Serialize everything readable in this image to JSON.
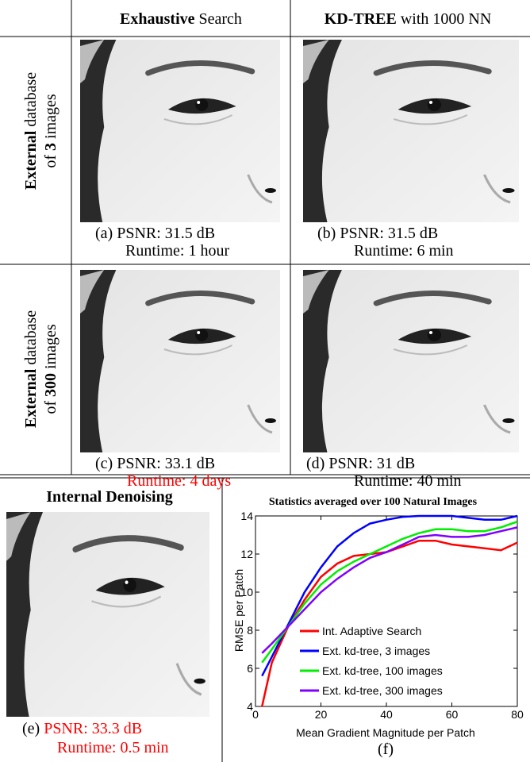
{
  "header": {
    "col1": {
      "bold": "Exhaustive",
      "rest": "Search"
    },
    "col2": {
      "bold": "KD-TREE",
      "rest": "with 1000 NN"
    }
  },
  "rows": [
    {
      "bold": "External",
      "rest": "database",
      "pre": "of",
      "number": "3",
      "post": "images"
    },
    {
      "bold": "External",
      "rest": "database",
      "pre": "of",
      "number": "300",
      "post": "images"
    }
  ],
  "panels": [
    {
      "label": "(a)",
      "psnr": "PSNR: 31.5 dB",
      "runtime": "Runtime: 1 hour"
    },
    {
      "label": "(b)",
      "psnr": "PSNR: 31.5 dB",
      "runtime": "Runtime: 6 min"
    },
    {
      "label": "(c)",
      "psnr": "PSNR: 33.1 dB",
      "runtime": "Runtime: 4 days"
    },
    {
      "label": "(d)",
      "psnr": "PSNR: 31 dB",
      "runtime": "Runtime: 40 min"
    }
  ],
  "internal": {
    "title": "Internal Denoising",
    "label": "(e)",
    "psnr": "PSNR: 33.3 dB",
    "runtime": "Runtime: 0.5 min"
  },
  "chart_data": {
    "type": "line",
    "title": "Statistics averaged over 100 Natural Images",
    "xlabel": "Mean Gradient Magnitude per Patch",
    "ylabel": "RMSE per Patch",
    "caption": "(f)",
    "x": [
      2,
      5,
      10,
      15,
      20,
      25,
      30,
      35,
      40,
      45,
      50,
      55,
      60,
      65,
      70,
      75,
      80
    ],
    "series": [
      {
        "name": "Int. Adaptive Search",
        "color": "#ff0000",
        "values": [
          4,
          6.3,
          8.2,
          9.6,
          10.8,
          11.5,
          11.9,
          12.0,
          12.1,
          12.4,
          12.7,
          12.7,
          12.5,
          12.4,
          12.3,
          12.2,
          12.6
        ]
      },
      {
        "name": "Ext. kd-tree, 3 images",
        "color": "#0000ff",
        "values": [
          5.6,
          6.6,
          8.3,
          10.0,
          11.3,
          12.4,
          13.1,
          13.6,
          13.8,
          13.95,
          14.0,
          14.0,
          14.0,
          13.9,
          13.8,
          13.8,
          14.0
        ]
      },
      {
        "name": "Ext. kd-tree, 100 images",
        "color": "#00ee00",
        "values": [
          6.3,
          7.0,
          8.2,
          9.4,
          10.4,
          11.1,
          11.6,
          12.0,
          12.4,
          12.8,
          13.1,
          13.3,
          13.3,
          13.2,
          13.2,
          13.4,
          13.7
        ]
      },
      {
        "name": "Ext. kd-tree, 300 images",
        "color": "#8000ff",
        "values": [
          6.8,
          7.3,
          8.2,
          9.1,
          10.0,
          10.7,
          11.3,
          11.8,
          12.1,
          12.5,
          12.9,
          13.0,
          12.9,
          12.9,
          13.0,
          13.2,
          13.4
        ]
      }
    ],
    "xlim": [
      0,
      80
    ],
    "xticks": [
      0,
      20,
      40,
      60,
      80
    ],
    "ylim": [
      4,
      14
    ],
    "yticks": [
      4,
      6,
      8,
      10,
      12,
      14
    ],
    "legend": "lower right"
  }
}
